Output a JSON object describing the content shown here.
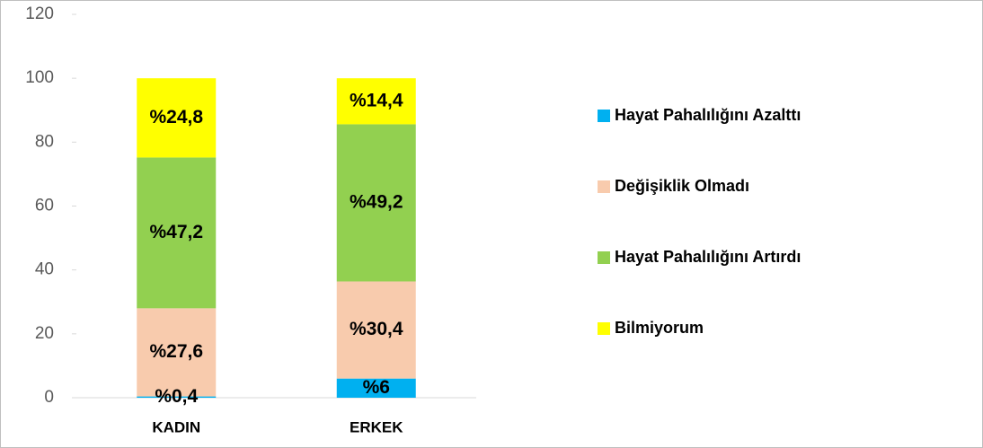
{
  "chart_data": {
    "type": "stacked_bar",
    "categories": [
      "KADIN",
      "ERKEK"
    ],
    "series": [
      {
        "name": "Hayat Pahalılığını Azalttı",
        "color": "#00b0f0",
        "values": [
          0.4,
          6
        ],
        "value_labels": [
          "%0,4",
          "%6"
        ]
      },
      {
        "name": "Değişiklik Olmadı",
        "color": "#f8cbad",
        "values": [
          27.6,
          30.4
        ],
        "value_labels": [
          "%27,6",
          "%30,4"
        ]
      },
      {
        "name": "Hayat Pahalılığını Artırdı",
        "color": "#92d050",
        "values": [
          47.2,
          49.2
        ],
        "value_labels": [
          "%47,2",
          "%49,2"
        ]
      },
      {
        "name": "Bilmiyorum",
        "color": "#ffff00",
        "values": [
          24.8,
          14.4
        ],
        "value_labels": [
          "%24,8",
          "%14,4"
        ]
      }
    ],
    "ylim": [
      0,
      120
    ],
    "yticks": [
      0,
      20,
      40,
      60,
      80,
      100,
      120
    ],
    "grid": false,
    "legend": "right"
  }
}
